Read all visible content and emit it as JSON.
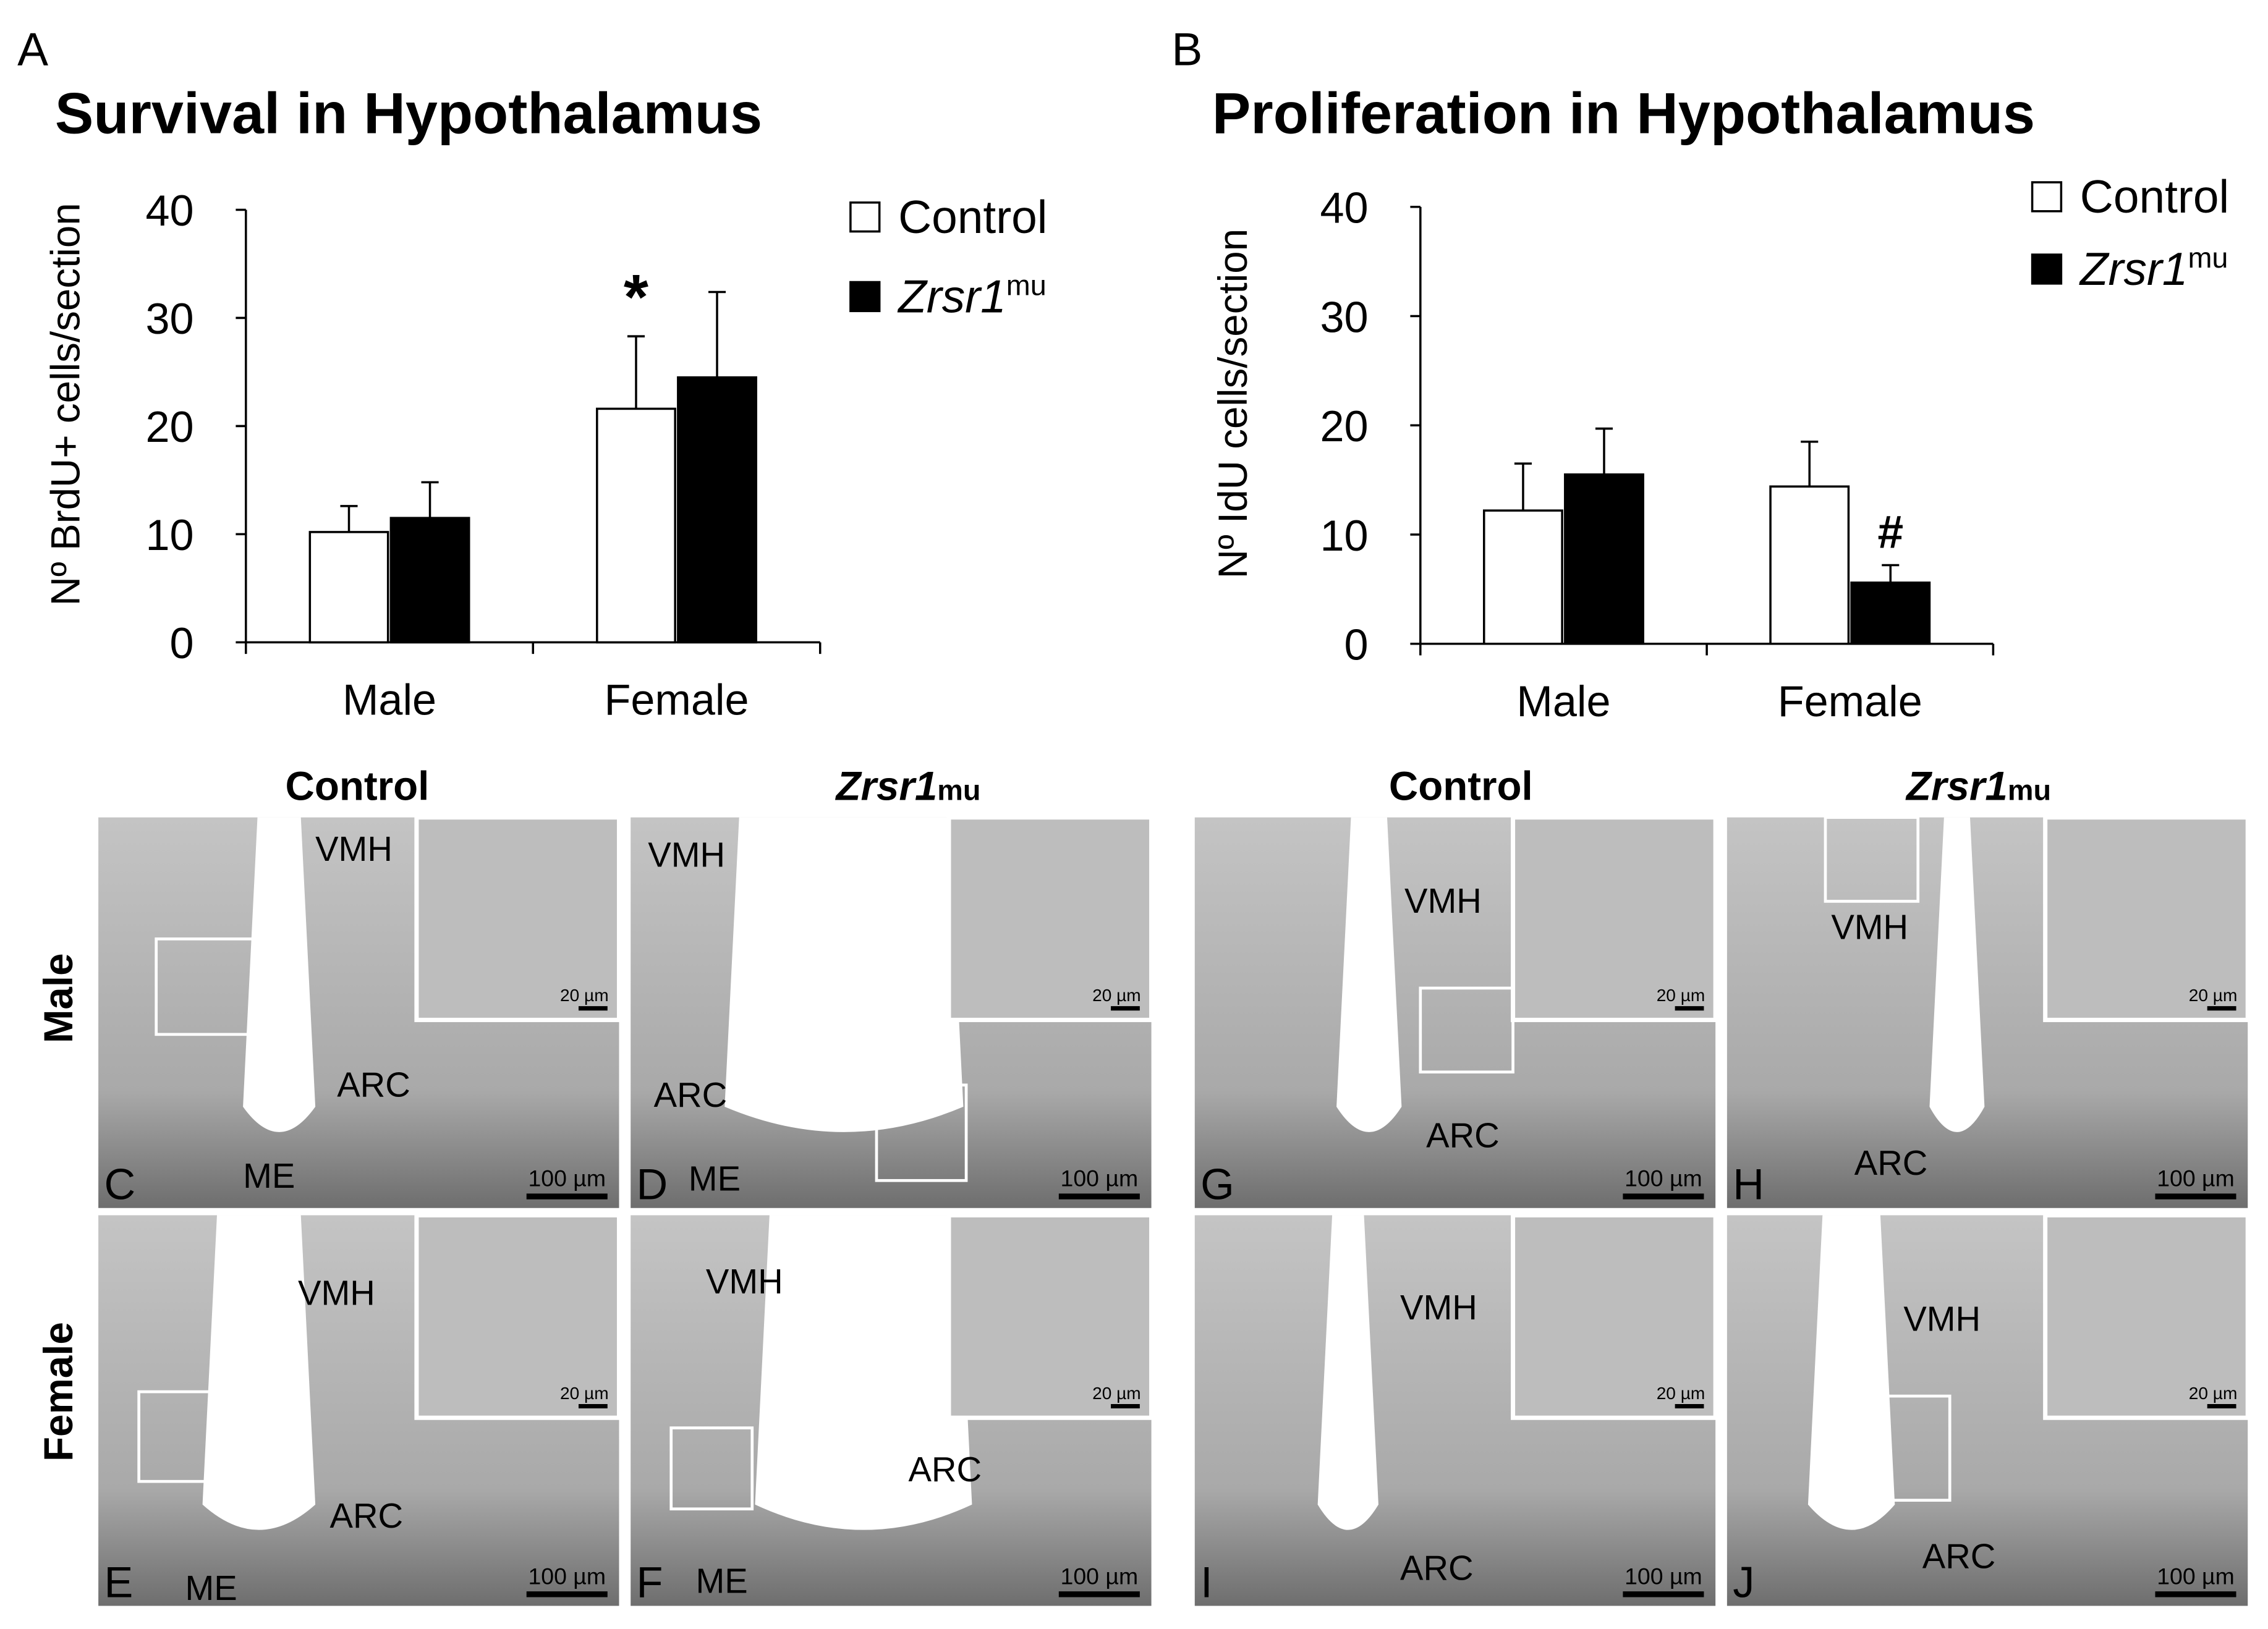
{
  "chart_data": [
    {
      "type": "bar",
      "panel": "A",
      "title": "Survival in Hypothalamus",
      "y_label": "Nº BrdU+ cells/section",
      "categories": [
        "Male",
        "Female"
      ],
      "series": [
        {
          "name": "Control",
          "color": "#ffffff",
          "values": [
            10.2,
            21.6
          ],
          "errors": [
            2.4,
            6.7
          ]
        },
        {
          "name": "Zrsr1",
          "name_sup": "mu",
          "color": "#000000",
          "values": [
            11.5,
            24.5
          ],
          "errors": [
            3.3,
            7.9
          ]
        }
      ],
      "ylim": [
        0,
        40
      ],
      "yticks": [
        0,
        10,
        20,
        30,
        40
      ],
      "annotations": [
        {
          "text": "*",
          "category": "Female",
          "series": "Control"
        }
      ]
    },
    {
      "type": "bar",
      "panel": "B",
      "title": "Proliferation in Hypothalamus",
      "y_label": "Nº IdU cells/section",
      "categories": [
        "Male",
        "Female"
      ],
      "series": [
        {
          "name": "Control",
          "color": "#ffffff",
          "values": [
            12.2,
            14.4
          ],
          "errors": [
            4.3,
            4.1
          ]
        },
        {
          "name": "Zrsr1",
          "name_sup": "mu",
          "color": "#000000",
          "values": [
            15.5,
            5.6
          ],
          "errors": [
            4.2,
            1.6
          ]
        }
      ],
      "ylim": [
        0,
        40
      ],
      "yticks": [
        0,
        10,
        20,
        30,
        40
      ],
      "annotations": [
        {
          "text": "#",
          "category": "Female",
          "series": "Zrsr1"
        }
      ]
    }
  ],
  "micrographs": {
    "column_headers": [
      {
        "text": "Control"
      },
      {
        "text": "Zrsr1",
        "sub": "mu"
      },
      {
        "text": "Control"
      },
      {
        "text": "Zrsr1",
        "sub": "mu"
      }
    ],
    "row_headers": [
      "Male",
      "Female"
    ],
    "panels": [
      {
        "letter": "C",
        "labels": [
          "VMH",
          "ARC",
          "ME"
        ],
        "scale_bar": "100 µm",
        "inset_scale_bar": "20 µm"
      },
      {
        "letter": "D",
        "labels": [
          "VMH",
          "ARC",
          "ME"
        ],
        "scale_bar": "100 µm",
        "inset_scale_bar": "20 µm"
      },
      {
        "letter": "G",
        "labels": [
          "VMH",
          "ARC"
        ],
        "scale_bar": "100 µm",
        "inset_scale_bar": "20 µm"
      },
      {
        "letter": "H",
        "labels": [
          "VMH",
          "ARC"
        ],
        "scale_bar": "100 µm",
        "inset_scale_bar": "20 µm"
      },
      {
        "letter": "E",
        "labels": [
          "VMH",
          "ARC",
          "ME"
        ],
        "scale_bar": "100 µm",
        "inset_scale_bar": "20 µm"
      },
      {
        "letter": "F",
        "labels": [
          "VMH",
          "ARC",
          "ME"
        ],
        "scale_bar": "100 µm",
        "inset_scale_bar": "20 µm"
      },
      {
        "letter": "I",
        "labels": [
          "VMH",
          "ARC"
        ],
        "scale_bar": "100 µm",
        "inset_scale_bar": "20 µm"
      },
      {
        "letter": "J",
        "labels": [
          "VMH",
          "ARC"
        ],
        "scale_bar": "100 µm",
        "inset_scale_bar": "20 µm"
      }
    ]
  }
}
